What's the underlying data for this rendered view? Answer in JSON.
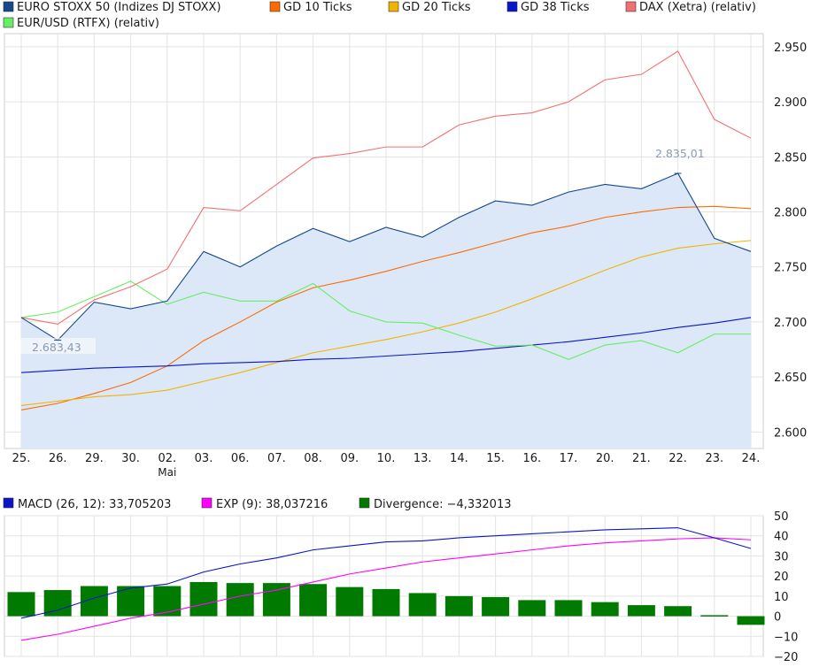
{
  "chart_data": [
    {
      "type": "line",
      "legend": [
        {
          "label": "EURO STOXX 50 (Indizes DJ STOXX)",
          "color": "#16488c"
        },
        {
          "label": "GD 10 Ticks",
          "color": "#ff6a00"
        },
        {
          "label": "GD 20 Ticks",
          "color": "#f0b400"
        },
        {
          "label": "GD 38 Ticks",
          "color": "#0a14c8"
        },
        {
          "label": "DAX (Xetra) (relativ)",
          "color": "#f27070"
        },
        {
          "label": "EUR/USD (RTFX) (relativ)",
          "color": "#66ee66"
        }
      ],
      "x_ticks": [
        "25.",
        "26.",
        "29.",
        "30.",
        "02.",
        "03.",
        "06.",
        "07.",
        "08.",
        "09.",
        "10.",
        "13.",
        "14.",
        "15.",
        "16.",
        "17.",
        "20.",
        "21.",
        "22.",
        "23.",
        "24."
      ],
      "x_sublabel": "Mai",
      "y_ticks": [
        "2.950",
        "2.900",
        "2.850",
        "2.800",
        "2.750",
        "2.700",
        "2.650",
        "2.600"
      ],
      "ylim": [
        2585,
        2962
      ],
      "annotations": {
        "high": "2.835,01",
        "low": "2.683,43"
      },
      "series": [
        {
          "name": "EURO STOXX 50 (Indizes DJ STOXX)",
          "color": "#16488c",
          "fill": "#dce7f7",
          "values": [
            2704,
            2683.43,
            2718,
            2712,
            2719,
            2764,
            2750,
            2769,
            2785,
            2773,
            2786,
            2777,
            2795,
            2810,
            2806,
            2818,
            2825,
            2821,
            2835.01,
            2776,
            2764
          ]
        },
        {
          "name": "GD 10 Ticks",
          "color": "#ff6a00",
          "values": [
            2620,
            2626,
            2635,
            2645,
            2660,
            2683,
            2700,
            2718,
            2731,
            2738,
            2746,
            2755,
            2763,
            2772,
            2781,
            2787,
            2795,
            2800,
            2804,
            2805,
            2803
          ]
        },
        {
          "name": "GD 20 Ticks",
          "color": "#f0b400",
          "values": [
            2624,
            2628,
            2632,
            2634,
            2638,
            2646,
            2654,
            2663,
            2672,
            2678,
            2684,
            2691,
            2699,
            2709,
            2721,
            2734,
            2747,
            2759,
            2767,
            2771,
            2774
          ]
        },
        {
          "name": "GD 38 Ticks",
          "color": "#0a14c8",
          "values": [
            2654,
            2656,
            2658,
            2659,
            2660,
            2662,
            2663,
            2664,
            2666,
            2667,
            2669,
            2671,
            2673,
            2676,
            2679,
            2682,
            2686,
            2690,
            2695,
            2699,
            2704
          ]
        },
        {
          "name": "DAX (Xetra) (relativ)",
          "color": "#f27070",
          "values": [
            2704,
            2698,
            2720,
            2732,
            2748,
            2804,
            2801,
            2825,
            2849,
            2853,
            2859,
            2859,
            2879,
            2887,
            2890,
            2900,
            2920,
            2925,
            2946,
            2884,
            2867
          ]
        },
        {
          "name": "EUR/USD (RTFX) (relativ)",
          "color": "#66ee66",
          "values": [
            2704,
            2709,
            2723,
            2737,
            2716,
            2727,
            2719,
            2719,
            2735,
            2710,
            2700,
            2699,
            2688,
            2678,
            2679,
            2666,
            2679,
            2683,
            2672,
            2689,
            2689
          ]
        }
      ]
    },
    {
      "type": "bar",
      "legend": [
        {
          "label": "MACD (26, 12): 33,705203",
          "color": "#0a14c8"
        },
        {
          "label": "EXP (9): 38,037216",
          "color": "#ff00ff"
        },
        {
          "label": "Divergence: −4,332013",
          "color": "#007a00"
        }
      ],
      "y_ticks": [
        "50",
        "40",
        "30",
        "20",
        "10",
        "0",
        "−10",
        "−20"
      ],
      "ylim": [
        -20,
        50
      ],
      "series": [
        {
          "name": "MACD (26, 12): 33,705203",
          "type": "line",
          "color": "#0a14c8",
          "values": [
            -1,
            3,
            9,
            14,
            16,
            22,
            26,
            29,
            33,
            35,
            37,
            37.5,
            39,
            40,
            41,
            42,
            43,
            43.5,
            44,
            39,
            33.7
          ]
        },
        {
          "name": "EXP (9): 38,037216",
          "type": "line",
          "color": "#ff00ff",
          "values": [
            -12,
            -9,
            -5,
            -1,
            2,
            6,
            10,
            13,
            17,
            21,
            24,
            27,
            29,
            31,
            33,
            35,
            36.5,
            37.5,
            38.5,
            39,
            38
          ]
        },
        {
          "name": "Divergence: −4,332013",
          "type": "bar",
          "color": "#007a00",
          "values": [
            12,
            13,
            15,
            15,
            15,
            17,
            16.5,
            16.5,
            16,
            14.5,
            13.5,
            11.5,
            10,
            9.5,
            8,
            8,
            7,
            5.5,
            5,
            0.5,
            -4.3
          ]
        }
      ]
    }
  ]
}
